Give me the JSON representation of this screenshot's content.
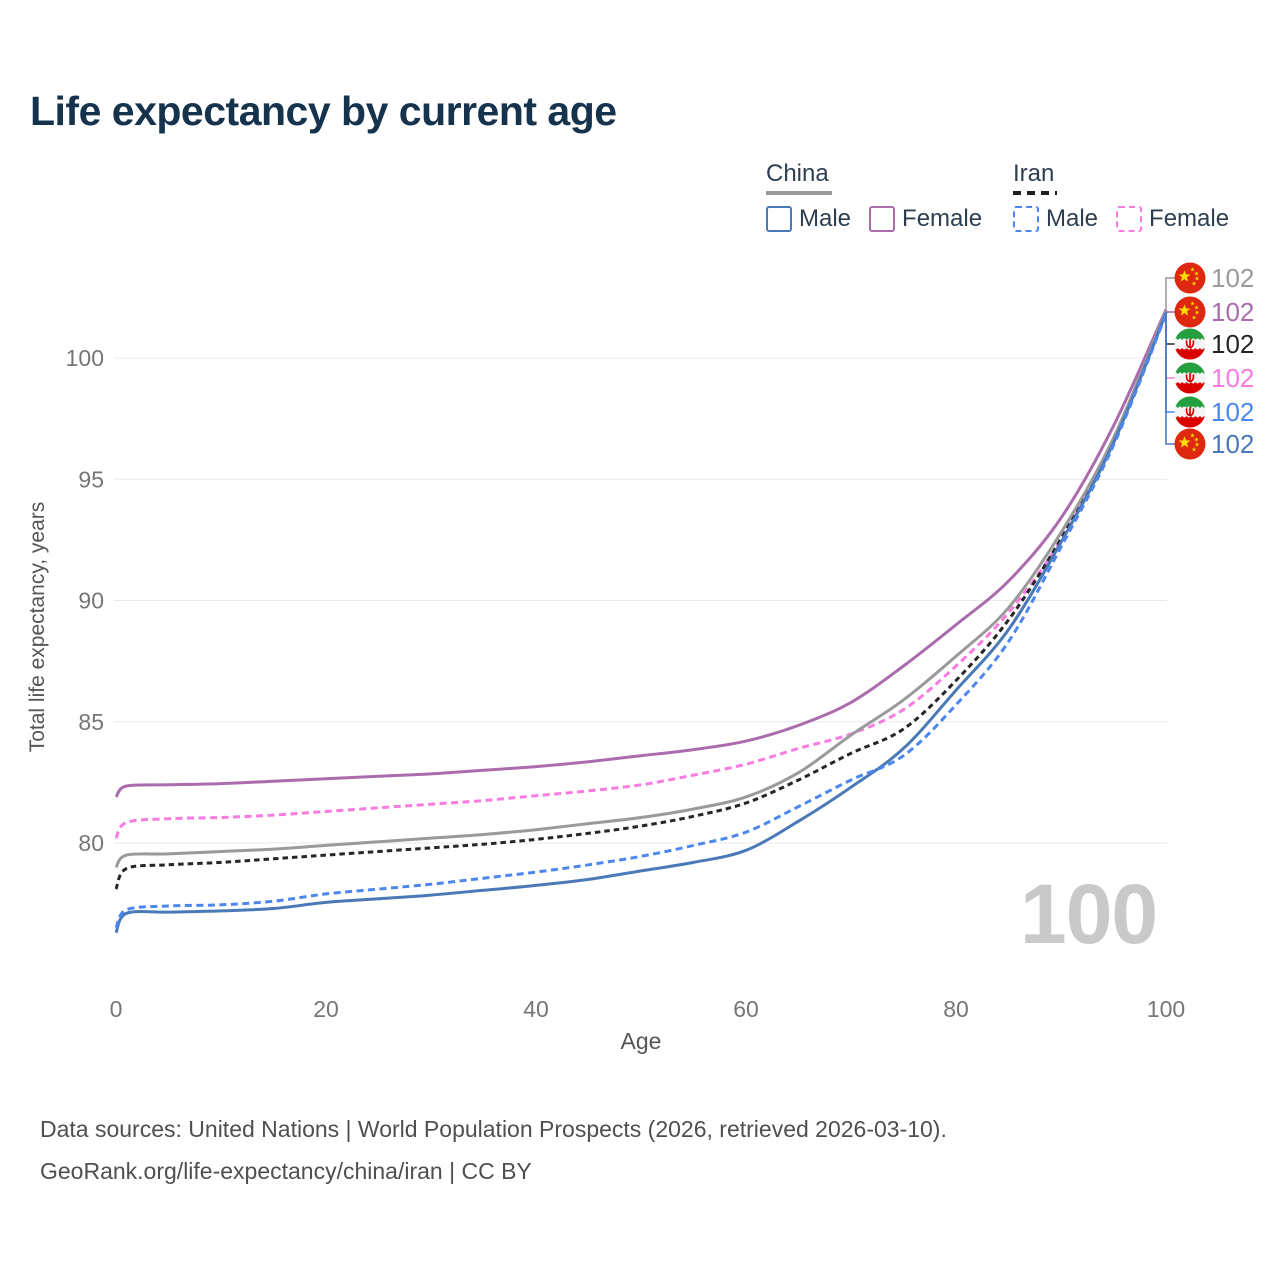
{
  "title": "Life expectancy by current age",
  "watermark": "100",
  "colors": {
    "title": "#16334e",
    "legend_text": "#2c3e50",
    "tick": "#767676",
    "axis_label": "#565656",
    "grid": "#e8e8e8",
    "watermark": "#c9c9c9",
    "footer": "#4f4f4f"
  },
  "legend": {
    "groups": [
      {
        "label": "China",
        "underline_color": "#9a9a9a",
        "underline_style": "solid",
        "items": [
          {
            "label": "Male",
            "color": "#4a79b8",
            "dash": "solid"
          },
          {
            "label": "Female",
            "color": "#ab6cad",
            "dash": "solid"
          }
        ]
      },
      {
        "label": "Iran",
        "underline_color": "#1f1f1f",
        "underline_style": "dashed",
        "items": [
          {
            "label": "Male",
            "color": "#4c87ee",
            "dash": "dashed"
          },
          {
            "label": "Female",
            "color": "#f97ae0",
            "dash": "dashed"
          }
        ]
      }
    ]
  },
  "chart_data": {
    "type": "line",
    "title": "Life expectancy by current age",
    "xlabel": "Age",
    "ylabel": "Total life expectancy, years",
    "x_ticks": [
      0,
      20,
      40,
      60,
      80,
      100
    ],
    "y_ticks": [
      80,
      85,
      90,
      95,
      100
    ],
    "xlim": [
      0,
      100
    ],
    "ylim": [
      76,
      102.5
    ],
    "grid": "horizontal",
    "legend_position": "top-right",
    "ages": [
      0,
      1,
      5,
      10,
      15,
      20,
      25,
      30,
      35,
      40,
      45,
      50,
      55,
      60,
      65,
      70,
      75,
      80,
      85,
      90,
      95,
      100
    ],
    "series": [
      {
        "id": "china-total",
        "name": "China (both sexes)",
        "country": "China",
        "sex": "All",
        "flag": "china",
        "color": "#9a9a9a",
        "dash": "solid",
        "end_label": "102",
        "values": [
          79.0,
          79.5,
          79.55,
          79.65,
          79.75,
          79.9,
          80.05,
          80.2,
          80.35,
          80.55,
          80.8,
          81.05,
          81.4,
          81.9,
          82.9,
          84.45,
          85.9,
          87.7,
          89.7,
          92.8,
          96.7,
          101.95
        ]
      },
      {
        "id": "china-female",
        "name": "China Female",
        "country": "China",
        "sex": "Female",
        "flag": "china",
        "color": "#ab6cad",
        "dash": "solid",
        "end_label": "102",
        "values": [
          81.9,
          82.35,
          82.4,
          82.45,
          82.55,
          82.65,
          82.75,
          82.85,
          83.0,
          83.15,
          83.35,
          83.6,
          83.85,
          84.2,
          84.85,
          85.8,
          87.3,
          89.0,
          90.8,
          93.4,
          97.2,
          102.0
        ]
      },
      {
        "id": "iran-total",
        "name": "Iran (both sexes)",
        "country": "Iran",
        "sex": "All",
        "flag": "iran",
        "color": "#262626",
        "dash": "dashed",
        "end_label": "102",
        "values": [
          78.1,
          78.95,
          79.1,
          79.2,
          79.35,
          79.5,
          79.65,
          79.8,
          79.95,
          80.15,
          80.4,
          80.7,
          81.1,
          81.65,
          82.6,
          83.7,
          84.7,
          86.7,
          89.2,
          92.55,
          96.55,
          101.9
        ]
      },
      {
        "id": "iran-female",
        "name": "Iran Female",
        "country": "Iran",
        "sex": "Female",
        "flag": "iran",
        "color": "#f97ae0",
        "dash": "dashed",
        "end_label": "102",
        "values": [
          80.2,
          80.85,
          81.0,
          81.05,
          81.15,
          81.3,
          81.45,
          81.6,
          81.75,
          81.95,
          82.15,
          82.4,
          82.8,
          83.25,
          83.9,
          84.5,
          85.5,
          87.3,
          89.5,
          92.5,
          96.6,
          101.9
        ]
      },
      {
        "id": "iran-male",
        "name": "Iran Male",
        "country": "Iran",
        "sex": "Male",
        "flag": "iran",
        "color": "#4c87ee",
        "dash": "dashed",
        "end_label": "102",
        "values": [
          76.5,
          77.25,
          77.4,
          77.45,
          77.6,
          77.9,
          78.1,
          78.3,
          78.55,
          78.8,
          79.1,
          79.45,
          79.9,
          80.45,
          81.5,
          82.6,
          83.6,
          85.7,
          88.3,
          92.2,
          96.4,
          101.8
        ]
      },
      {
        "id": "china-male",
        "name": "China Male",
        "country": "China",
        "sex": "Male",
        "flag": "china",
        "color": "#4a79b8",
        "dash": "solid",
        "end_label": "102",
        "values": [
          76.3,
          77.1,
          77.15,
          77.2,
          77.3,
          77.55,
          77.7,
          77.85,
          78.05,
          78.25,
          78.5,
          78.85,
          79.2,
          79.7,
          80.9,
          82.3,
          83.9,
          86.3,
          88.8,
          92.4,
          96.5,
          101.85
        ]
      }
    ]
  },
  "flag_colors": {
    "china_red": "#de2910",
    "china_yellow": "#ffde00",
    "iran_green": "#239f40",
    "iran_white": "#f4f4f4",
    "iran_red": "#da0000"
  },
  "footer": {
    "line1": "Data sources: United Nations | World Population Prospects (2026, retrieved 2026-03-10).",
    "line2": "GeoRank.org/life-expectancy/china/iran | CC BY"
  }
}
